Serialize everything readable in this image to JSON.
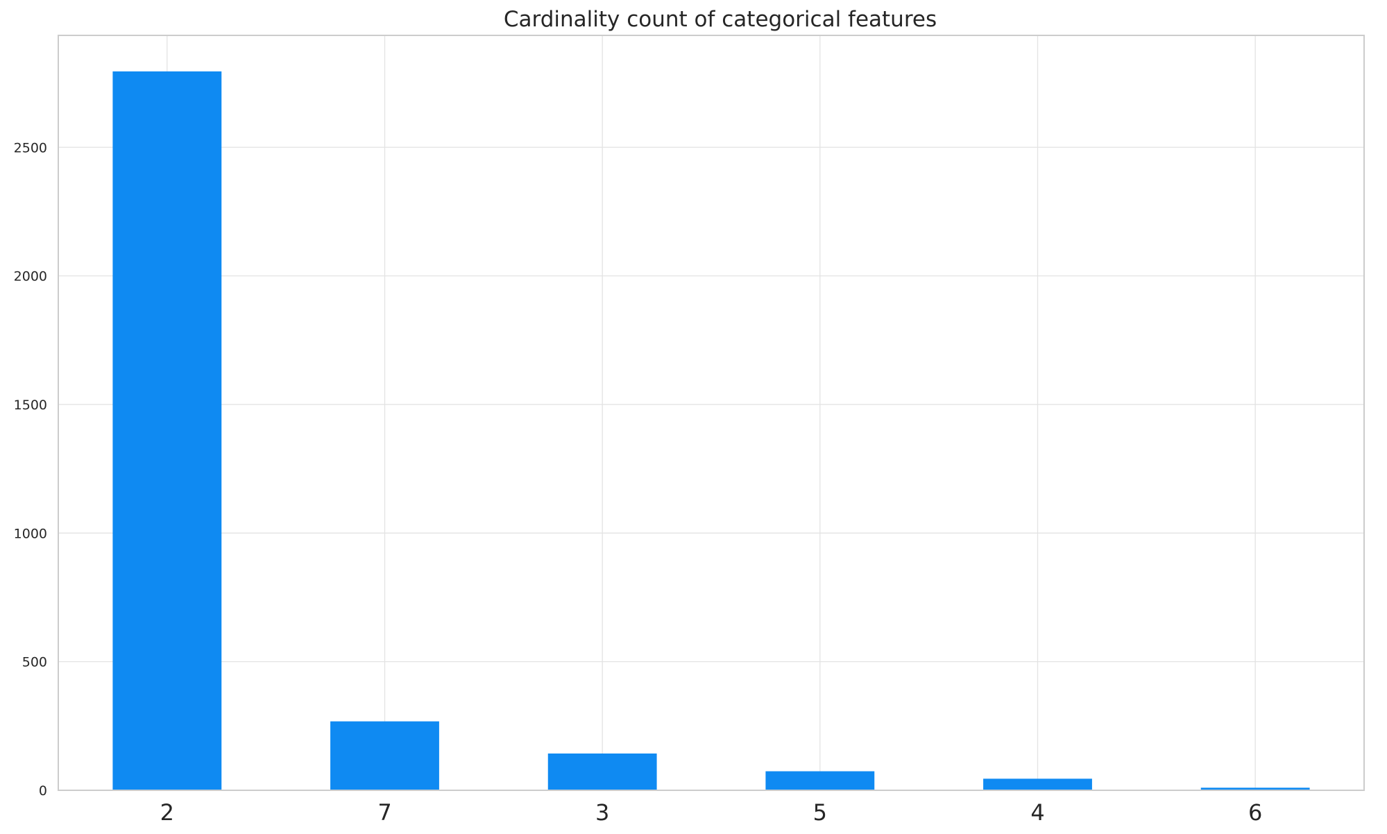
{
  "chart_data": {
    "type": "bar",
    "title": "Cardinality count of categorical features",
    "xlabel": "",
    "ylabel": "",
    "categories": [
      "2",
      "7",
      "3",
      "5",
      "4",
      "6"
    ],
    "values": [
      2795,
      268,
      143,
      74,
      45,
      10
    ],
    "ylim": [
      0,
      2935
    ],
    "yticks": [
      0,
      500,
      1000,
      1500,
      2000,
      2500
    ],
    "grid": true,
    "legend": "none",
    "bar_color": "#0f8af2"
  }
}
